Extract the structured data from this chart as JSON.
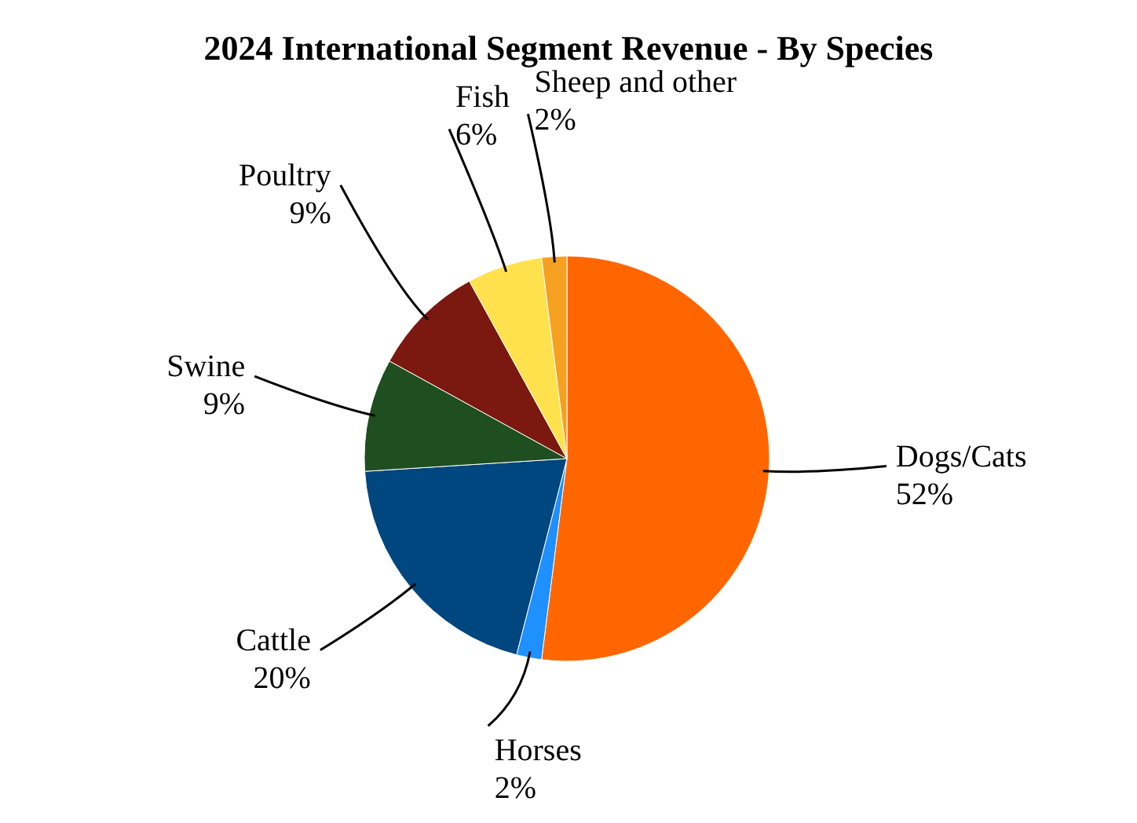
{
  "chart_data": {
    "type": "pie",
    "title": "2024 International Segment Revenue - By Species",
    "categories": [
      "Dogs/Cats",
      "Horses",
      "Cattle",
      "Swine",
      "Poultry",
      "Fish",
      "Sheep and other"
    ],
    "values": [
      52,
      2,
      20,
      9,
      9,
      6,
      2
    ],
    "value_labels": [
      "52%",
      "2%",
      "20%",
      "9%",
      "9%",
      "6%",
      "2%"
    ],
    "colors": [
      "#ff6600",
      "#1e90ff",
      "#00467f",
      "#1f4e20",
      "#7b1810",
      "#ffe14d",
      "#f5a020"
    ]
  }
}
